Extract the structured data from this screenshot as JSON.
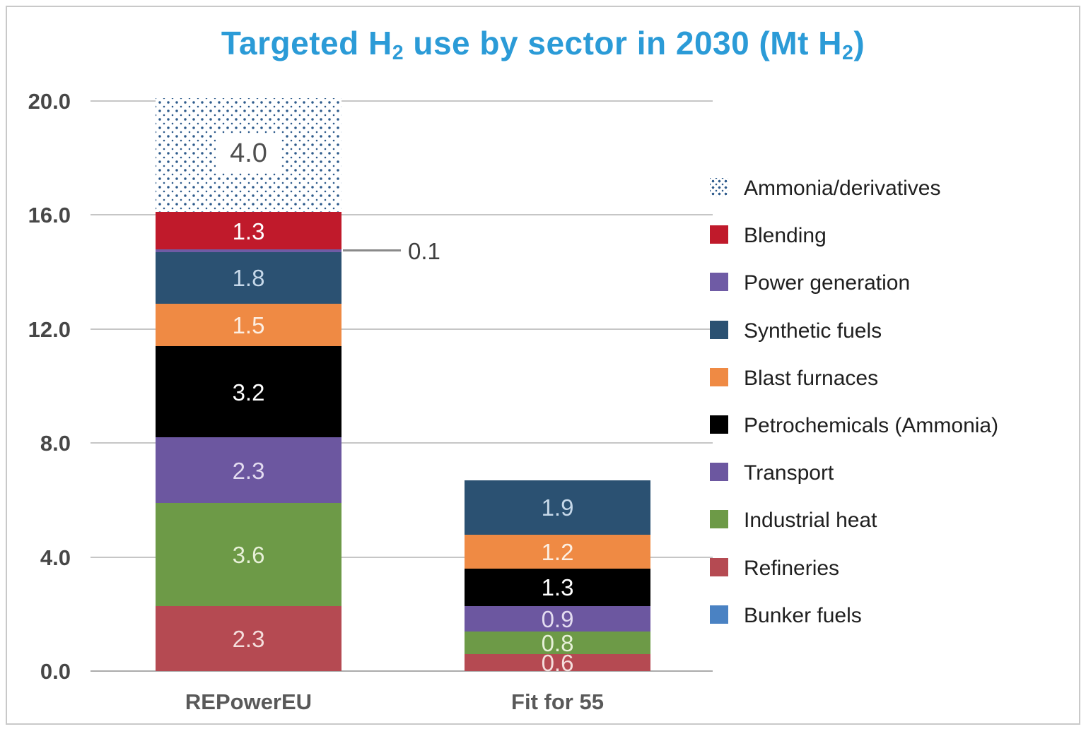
{
  "frame": {
    "border_color": "#c9c9c9",
    "background": "#ffffff"
  },
  "title": {
    "full_text": "Targeted H2 use by sector in 2030 (Mt H2)",
    "color": "#2B9BD7",
    "parts": [
      {
        "text": "Targeted H"
      },
      {
        "text": "2"
      },
      {
        "text": " use by sector in 2030 (Mt H"
      },
      {
        "text": "2"
      },
      {
        "text": ")"
      }
    ]
  },
  "axis": {
    "tick_label_color": "#474747",
    "category_label_color": "#595959",
    "grid_color": "#c6c6c6",
    "baseline_color": "#ababab"
  },
  "callout": {
    "label": "0.1",
    "sector": "Power generation",
    "category": "REPowerEU",
    "line_color": "#8a8a8a",
    "text_color": "#3f3f3f"
  },
  "chart_data": {
    "type": "bar",
    "subtype": "stacked",
    "title": "Targeted H2 use by sector in 2030 (Mt H2)",
    "xlabel": "",
    "ylabel": "Mt H2",
    "categories": [
      "REPowerEU",
      "Fit for 55"
    ],
    "totals": [
      20.1,
      6.7
    ],
    "ylim": [
      0,
      20
    ],
    "y_ticks": [
      "0.0",
      "4.0",
      "8.0",
      "12.0",
      "16.0",
      "20.0"
    ],
    "grid": true,
    "legend_position": "right",
    "sectors": [
      {
        "label": "Ammonia/derivatives",
        "color": "dotted",
        "dot_color": "#2E5B8C",
        "values": [
          4.0,
          null
        ],
        "label_color": "#4f4f4f",
        "chip": true
      },
      {
        "label": "Blending",
        "color": "#C01A2B",
        "values": [
          1.3,
          null
        ],
        "label_color": "#ffffff"
      },
      {
        "label": "Power generation",
        "color": "#6F5BA5",
        "values": [
          0.1,
          null
        ],
        "label_color": "#ffffff",
        "callout": true
      },
      {
        "label": "Synthetic fuels",
        "color": "#2B5172",
        "values": [
          1.8,
          1.9
        ],
        "label_color": "#C6D8E9"
      },
      {
        "label": "Blast furnaces",
        "color": "#EF8A44",
        "values": [
          1.5,
          1.2
        ],
        "label_color": "#FCEFE3"
      },
      {
        "label": "Petrochemicals (Ammonia)",
        "color": "#000000",
        "values": [
          3.2,
          1.3
        ],
        "label_color": "#ffffff"
      },
      {
        "label": "Transport",
        "color": "#6C57A0",
        "values": [
          2.3,
          0.9
        ],
        "label_color": "#E3DCF0"
      },
      {
        "label": "Industrial heat",
        "color": "#6D9A47",
        "values": [
          3.6,
          0.8
        ],
        "label_color": "#E7F0D8"
      },
      {
        "label": "Refineries",
        "color": "#B54A52",
        "values": [
          2.3,
          0.6
        ],
        "label_color": "#F4DEDC"
      },
      {
        "label": "Bunker fuels",
        "color": "#4A82C3",
        "values": [
          null,
          null
        ],
        "label_color": "#ffffff"
      }
    ],
    "stack_order_bottom_to_top": [
      "Refineries",
      "Industrial heat",
      "Transport",
      "Petrochemicals (Ammonia)",
      "Blast furnaces",
      "Synthetic fuels",
      "Power generation",
      "Blending",
      "Ammonia/derivatives"
    ]
  }
}
